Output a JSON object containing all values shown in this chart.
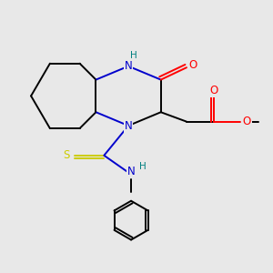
{
  "bg_color": "#e8e8e8",
  "atom_colors": {
    "N": "#0000cc",
    "O": "#ff0000",
    "S": "#cccc00",
    "C": "#000000",
    "H_label": "#008080"
  },
  "bond_color": "#000000"
}
